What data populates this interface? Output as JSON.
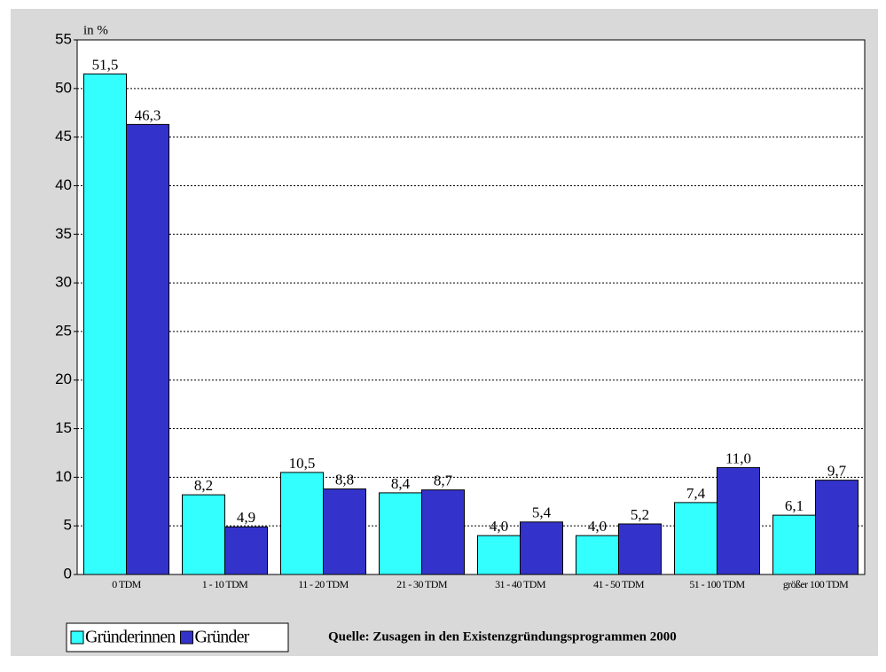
{
  "chart_data": {
    "type": "bar",
    "y_label": "in %",
    "source": "Quelle: Zusagen in den Existenzgründungsprogrammen 2000",
    "categories": [
      "0 TDM",
      "1 - 10 TDM",
      "11 - 20 TDM",
      "21 - 30 TDM",
      "31 - 40 TDM",
      "41 - 50 TDM",
      "51 - 100 TDM",
      "größer 100 TDM"
    ],
    "series": [
      {
        "name": "Gründerinnen",
        "color": "#33ffff",
        "values": [
          51.5,
          8.2,
          10.5,
          8.4,
          4.0,
          4.0,
          7.4,
          6.1
        ],
        "value_labels": [
          "51,5",
          "8,2",
          "10,5",
          "8,4",
          "4,0",
          "4,0",
          "7,4",
          "6,1"
        ]
      },
      {
        "name": "Gründer",
        "color": "#3333cc",
        "values": [
          46.3,
          4.9,
          8.8,
          8.7,
          5.4,
          5.2,
          11.0,
          9.7
        ],
        "value_labels": [
          "46,3",
          "4,9",
          "8,8",
          "8,7",
          "5,4",
          "5,2",
          "11,0",
          "9,7"
        ]
      }
    ],
    "ylim": [
      0,
      55
    ],
    "yticks": [
      0,
      5,
      10,
      15,
      20,
      25,
      30,
      35,
      40,
      45,
      50,
      55
    ],
    "grid": true
  }
}
